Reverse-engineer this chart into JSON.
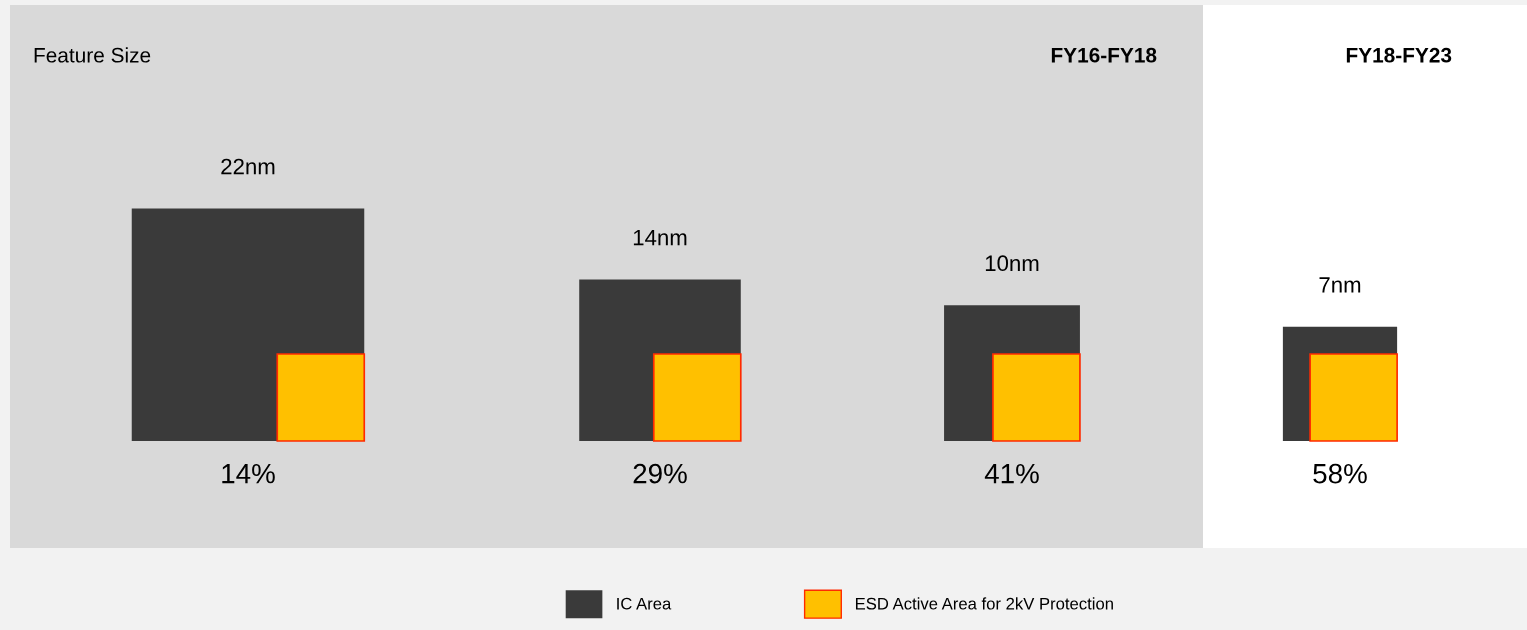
{
  "chart_data": {
    "type": "other",
    "title": "Feature Size",
    "categories": [
      "22nm",
      "14nm",
      "10nm",
      "7nm"
    ],
    "series": [
      {
        "name": "IC Area",
        "color": "#3a3a3a",
        "values": [
          null,
          null,
          null,
          null
        ]
      },
      {
        "name": "ESD Active Area for 2kV Protection",
        "color": "#ffc000",
        "values": [
          14,
          29,
          41,
          58
        ],
        "value_labels": [
          "14%",
          "29%",
          "41%",
          "58%"
        ]
      }
    ],
    "annotations": [
      "FY16-FY18",
      "FY18-FY23"
    ],
    "legend": "bottom"
  }
}
